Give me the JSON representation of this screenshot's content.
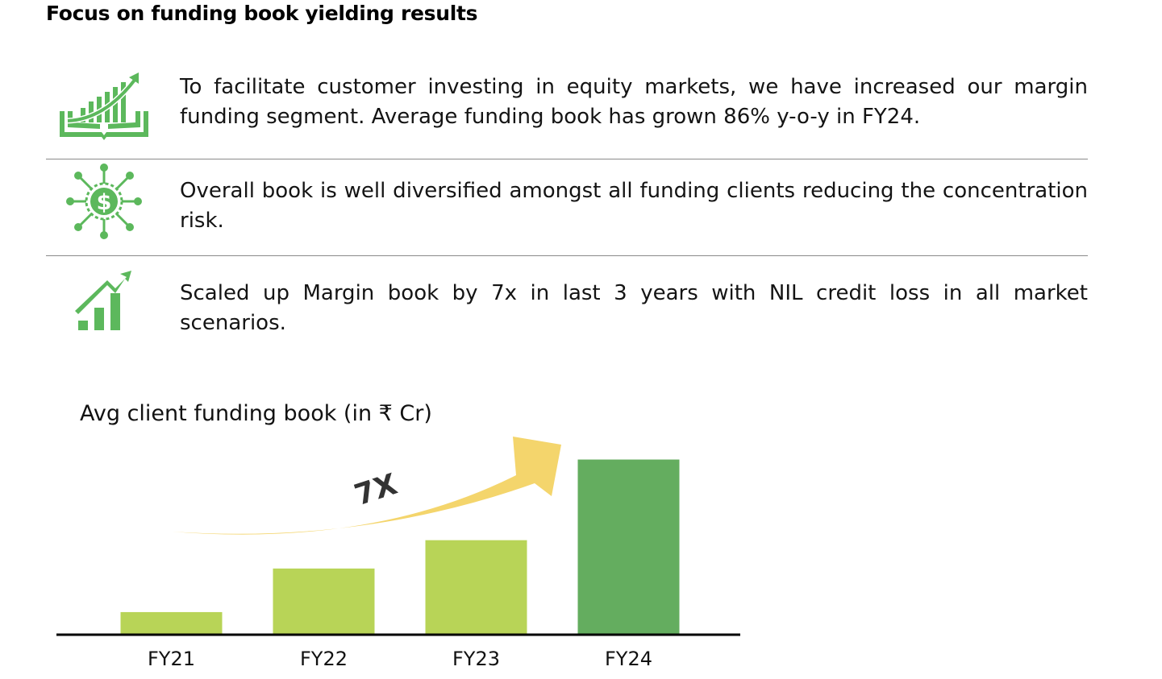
{
  "header": {
    "title": "Focus on funding book yielding results"
  },
  "points": [
    {
      "text": "To facilitate customer investing in equity markets, we have increased our margin funding segment. Average funding book has grown 86% y-o-y in FY24.",
      "icon": "growth-book-icon"
    },
    {
      "text": "Overall book is well diversified amongst all funding clients reducing the concentration risk.",
      "icon": "dollar-network-icon"
    },
    {
      "text": "Scaled up Margin book by 7x in last 3 years with NIL credit loss in all market scenarios.",
      "icon": "bar-growth-arrow-icon"
    }
  ],
  "colors": {
    "icon_green": "#5cb85c",
    "bar_light": "#b8d457",
    "bar_dark": "#64ad5f",
    "arrow": "#f4d56c"
  },
  "chart_data": {
    "type": "bar",
    "title": "Avg client funding book (in ₹ Cr)",
    "categories": [
      "FY21",
      "FY22",
      "FY23",
      "FY24"
    ],
    "values": [
      1,
      3,
      4.3,
      8
    ],
    "annotation": "7X",
    "ylim": [
      0,
      8.5
    ],
    "grid": false
  }
}
